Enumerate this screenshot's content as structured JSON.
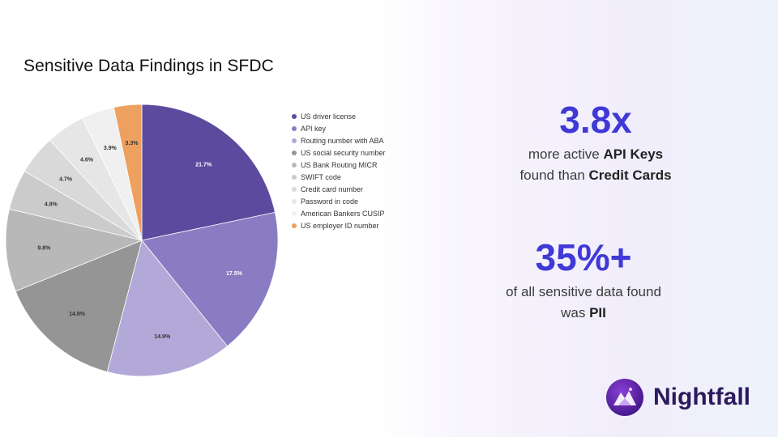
{
  "page_title": "Sensitive Data Findings in SFDC",
  "chart_data": {
    "type": "pie",
    "title": "Sensitive Data Findings in SFDC",
    "legend_position": "right",
    "slices": [
      {
        "label": "US driver license",
        "value": 21.7,
        "display": "21.7%",
        "color": "#5c4a9e"
      },
      {
        "label": "API key",
        "value": 17.5,
        "display": "17.5%",
        "color": "#8a7cc2"
      },
      {
        "label": "Routing number with ABA",
        "value": 14.9,
        "display": "14.9%",
        "color": "#b2a9d8"
      },
      {
        "label": "US social security number",
        "value": 14.8,
        "display": "14.8%",
        "color": "#959595"
      },
      {
        "label": "US Bank Routing MICR",
        "value": 9.8,
        "display": "9.8%",
        "color": "#b8b8b8"
      },
      {
        "label": "SWIFT code",
        "value": 4.8,
        "display": "4.8%",
        "color": "#cbcbcb"
      },
      {
        "label": "Credit card number",
        "value": 4.7,
        "display": "4.7%",
        "color": "#d9d9d9"
      },
      {
        "label": "Password in code",
        "value": 4.6,
        "display": "4.6%",
        "color": "#e6e6e6"
      },
      {
        "label": "American Bankers CUSIP",
        "value": 3.9,
        "display": "3.9%",
        "color": "#f0f0f0"
      },
      {
        "label": "US employer ID number",
        "value": 3.3,
        "display": "3.3%",
        "color": "#eea05f"
      }
    ]
  },
  "stats": {
    "api_keys": {
      "value": "3.8x",
      "line1_pre": "more active ",
      "line1_bold": "API Keys",
      "line2_pre": "found than ",
      "line2_bold": "Credit Cards"
    },
    "pii": {
      "value": "35%+",
      "line1": "of all sensitive data found",
      "line2_pre": "was ",
      "line2_bold": "PII"
    }
  },
  "brand": {
    "name": "Nightfall",
    "logo_icon": "nightfall-mountain-logo"
  }
}
